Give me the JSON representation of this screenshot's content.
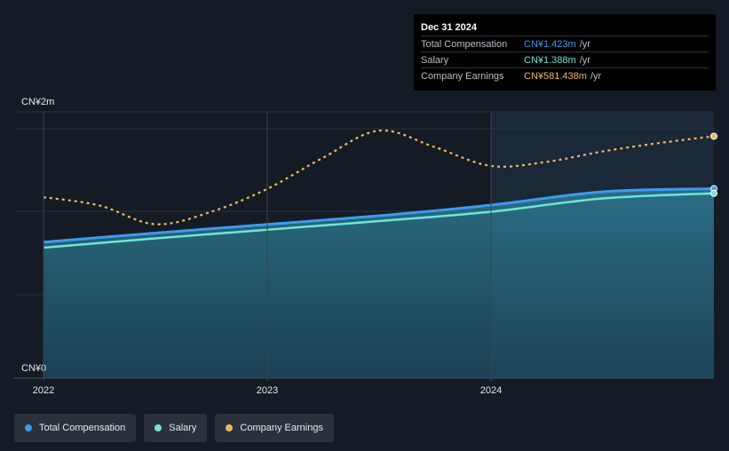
{
  "tooltip": {
    "date": "Dec 31 2024",
    "rows": [
      {
        "label": "Total Compensation",
        "value": "CN¥1.423m",
        "unit": "/yr",
        "color": "#3b9bf2"
      },
      {
        "label": "Salary",
        "value": "CN¥1.388m",
        "unit": "/yr",
        "color": "#6ee6d4"
      },
      {
        "label": "Company Earnings",
        "value": "CN¥581.438m",
        "unit": "/yr",
        "color": "#f0b866"
      }
    ]
  },
  "legend": [
    {
      "label": "Total Compensation",
      "color": "#3b9bf2"
    },
    {
      "label": "Salary",
      "color": "#6ee6d4"
    },
    {
      "label": "Company Earnings",
      "color": "#f0b866"
    }
  ],
  "chart_data": {
    "type": "line",
    "y_ticks": [
      "CN¥2m",
      "CN¥0"
    ],
    "x_ticks": [
      {
        "label": "2022",
        "x": 2022.0
      },
      {
        "label": "2023",
        "x": 2023.0
      },
      {
        "label": "2024",
        "x": 2024.0
      }
    ],
    "xlim": [
      2021.87,
      2025.0
    ],
    "ylim": [
      0,
      2.0
    ],
    "series": [
      {
        "name": "Total Compensation",
        "color": "#3b9bf2",
        "x": [
          2022.0,
          2022.5,
          2023.0,
          2023.5,
          2024.0,
          2024.5,
          2025.0
        ],
        "y": [
          1.022,
          1.09,
          1.155,
          1.22,
          1.3,
          1.4,
          1.423
        ]
      },
      {
        "name": "Salary",
        "color": "#6ee6d4",
        "x": [
          2022.0,
          2022.5,
          2023.0,
          2023.5,
          2024.0,
          2024.5,
          2025.0
        ],
        "y": [
          0.98,
          1.05,
          1.115,
          1.18,
          1.25,
          1.35,
          1.388
        ]
      },
      {
        "name": "Company Earnings",
        "color": "#f0b866",
        "x": [
          2022.0,
          2022.25,
          2022.5,
          2022.75,
          2023.0,
          2023.25,
          2023.5,
          2023.75,
          2024.0,
          2024.25,
          2024.5,
          2024.75,
          2025.0
        ],
        "y": [
          435,
          415,
          370,
          400,
          455,
          530,
          595,
          555,
          510,
          520,
          545,
          565,
          581.438
        ]
      }
    ],
    "earnings_scale_max": 640,
    "highlight_from": 2024.0
  }
}
